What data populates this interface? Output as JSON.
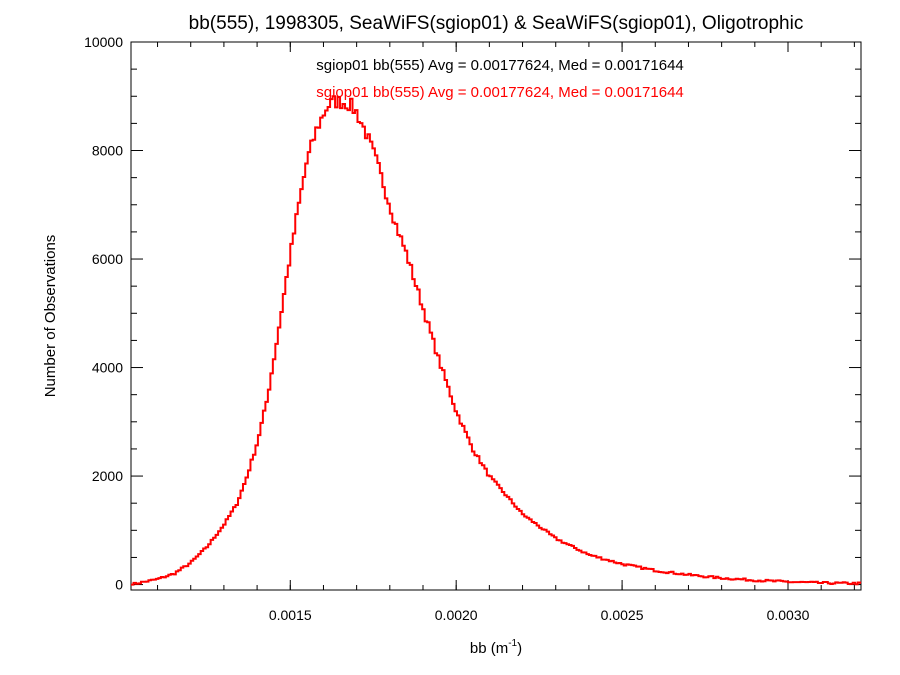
{
  "chart_data": {
    "type": "histogram-step",
    "title": "bb(555), 1998305, SeaWiFS(sgiop01) & SeaWiFS(sgiop01), Oligotrophic",
    "xlabel": "bb (m",
    "xlabel_sup": "-1",
    "xlabel_close": ")",
    "ylabel": "Number of Observations",
    "xlim": [
      0.00102,
      0.00322
    ],
    "ylim": [
      -100,
      10000
    ],
    "x_ticks": [
      0.0015,
      0.002,
      0.0025,
      0.003
    ],
    "x_tick_labels": [
      "0.0015",
      "0.0020",
      "0.0025",
      "0.0030"
    ],
    "y_ticks": [
      0,
      2000,
      4000,
      6000,
      8000,
      10000
    ],
    "y_tick_labels": [
      "0",
      "2000",
      "4000",
      "6000",
      "8000",
      "10000"
    ],
    "annotations": [
      {
        "text": "sgiop01 bb(555) Avg = 0.00177624, Med = 0.00171644",
        "color": "#000000"
      },
      {
        "text": "sgiop01 bb(555) Avg = 0.00177624, Med = 0.00171644",
        "color": "#ff0000"
      }
    ],
    "series": [
      {
        "color": "#ff0000",
        "anchors_x": [
          0.00102,
          0.0011,
          0.00115,
          0.0012,
          0.00125,
          0.0013,
          0.00134,
          0.00137,
          0.0014,
          0.00143,
          0.00146,
          0.00149,
          0.00152,
          0.00155,
          0.00158,
          0.00161,
          0.00163,
          0.00165,
          0.00168,
          0.0017,
          0.00173,
          0.00176,
          0.00179,
          0.00182,
          0.00185,
          0.0019,
          0.00195,
          0.002,
          0.00205,
          0.0021,
          0.0022,
          0.0023,
          0.0024,
          0.0025,
          0.0026,
          0.0027,
          0.0028,
          0.0029,
          0.003,
          0.0031,
          0.00322
        ],
        "anchors_y": [
          0,
          100,
          200,
          400,
          700,
          1100,
          1500,
          2000,
          2600,
          3400,
          4500,
          5700,
          6800,
          7800,
          8400,
          8800,
          8900,
          8900,
          8850,
          8700,
          8300,
          7800,
          7200,
          6600,
          6100,
          5100,
          4100,
          3200,
          2500,
          2000,
          1300,
          850,
          550,
          380,
          260,
          180,
          120,
          80,
          50,
          30,
          20
        ]
      }
    ]
  }
}
